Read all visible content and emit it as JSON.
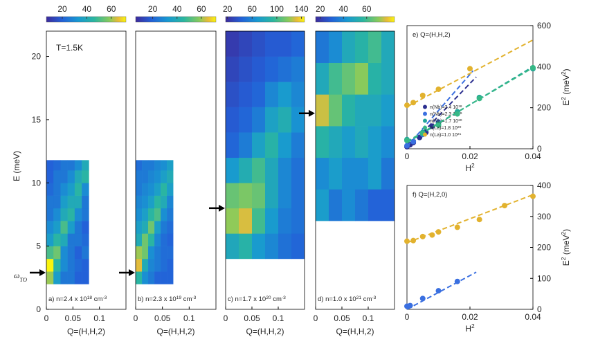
{
  "chart_data": [
    {
      "type": "heatmap",
      "label": [
        "a) n=2.4 x 10",
        "18",
        " cm",
        "-3"
      ],
      "xlabel": "Q=(H,H,2)",
      "ylabel": "E (meV)",
      "annotation": "T=1.5K",
      "arrow_label": [
        "ω",
        "TO"
      ],
      "arrow": 2.9,
      "xlim": [
        0,
        0.15
      ],
      "xticks": [
        0,
        0.05,
        0.1
      ],
      "ylim": [
        0,
        22
      ],
      "yticks": [
        0,
        5,
        10,
        15,
        20
      ],
      "clim": [
        7,
        72
      ],
      "cticks": [
        20,
        40,
        60
      ],
      "x_edges": [
        0,
        0.0133,
        0.0267,
        0.04,
        0.0533,
        0.0667,
        0.08
      ],
      "y_edges": [
        2,
        3,
        4,
        5,
        6,
        7,
        8,
        9,
        10,
        11,
        11.8
      ],
      "values": [
        [
          60,
          35,
          25,
          25,
          20,
          20
        ],
        [
          72,
          45,
          30,
          25,
          22,
          20
        ],
        [
          50,
          55,
          30,
          25,
          20,
          25
        ],
        [
          35,
          45,
          40,
          25,
          25,
          22
        ],
        [
          30,
          35,
          50,
          35,
          25,
          20
        ],
        [
          25,
          30,
          40,
          45,
          30,
          25
        ],
        [
          25,
          25,
          35,
          40,
          40,
          25
        ],
        [
          22,
          25,
          30,
          35,
          45,
          30
        ],
        [
          20,
          25,
          25,
          30,
          40,
          45
        ],
        [
          20,
          22,
          25,
          25,
          30,
          40
        ]
      ]
    },
    {
      "type": "heatmap",
      "label": [
        "b) n=2.3 x 10",
        "19",
        " cm",
        "-3"
      ],
      "xlabel": "Q=(H,H,2)",
      "arrow": 2.9,
      "xlim": [
        0,
        0.15
      ],
      "xticks": [
        0,
        0.05,
        0.1
      ],
      "ylim": [
        0,
        22
      ],
      "clim": [
        6,
        72
      ],
      "cticks": [
        20,
        40,
        60
      ],
      "x_edges": [
        0,
        0.0117,
        0.0233,
        0.035,
        0.0467,
        0.0583,
        0.07
      ],
      "y_edges": [
        2,
        3,
        4,
        5,
        6,
        7,
        8,
        9,
        10,
        11,
        11.8
      ],
      "values": [
        [
          45,
          30,
          25,
          20,
          20,
          20
        ],
        [
          65,
          40,
          28,
          25,
          22,
          20
        ],
        [
          60,
          55,
          30,
          25,
          22,
          22
        ],
        [
          40,
          55,
          45,
          28,
          22,
          20
        ],
        [
          35,
          40,
          55,
          35,
          25,
          22
        ],
        [
          30,
          35,
          45,
          50,
          30,
          25
        ],
        [
          28,
          30,
          35,
          45,
          40,
          28
        ],
        [
          25,
          28,
          30,
          35,
          45,
          35
        ],
        [
          25,
          25,
          28,
          30,
          35,
          40
        ],
        [
          22,
          25,
          25,
          28,
          30,
          35
        ]
      ]
    },
    {
      "type": "heatmap",
      "label": [
        "c) n=1.7 x 10",
        "20",
        " cm",
        "-3"
      ],
      "xlabel": "Q=(H,H,2)",
      "arrow": 8,
      "xlim": [
        0,
        0.15
      ],
      "xticks": [
        0,
        0.05,
        0.1
      ],
      "ylim": [
        0,
        22
      ],
      "clim": [
        17,
        145
      ],
      "cticks": [
        20,
        60,
        100,
        140
      ],
      "x_edges": [
        0,
        0.025,
        0.05,
        0.075,
        0.1,
        0.125,
        0.15
      ],
      "y_edges": [
        4,
        6,
        8,
        10,
        12,
        14,
        16,
        18,
        20,
        22
      ],
      "values": [
        [
          80,
          90,
          70,
          60,
          50,
          45
        ],
        [
          120,
          130,
          100,
          70,
          55,
          50
        ],
        [
          110,
          115,
          110,
          80,
          60,
          50
        ],
        [
          70,
          85,
          100,
          80,
          60,
          50
        ],
        [
          45,
          55,
          75,
          90,
          70,
          55
        ],
        [
          40,
          45,
          55,
          75,
          85,
          65
        ],
        [
          35,
          40,
          45,
          60,
          70,
          60
        ],
        [
          30,
          35,
          40,
          45,
          50,
          55
        ],
        [
          25,
          30,
          35,
          40,
          40,
          45
        ]
      ]
    },
    {
      "type": "heatmap",
      "label": [
        "d) n=1.0 x 10",
        "21",
        " cm",
        "-3"
      ],
      "xlabel": "Q=(H,H,2)",
      "arrow": 15.5,
      "xlim": [
        0,
        0.15
      ],
      "xticks": [
        0,
        0.05,
        0.1
      ],
      "ylim": [
        0,
        22
      ],
      "clim": [
        16,
        84
      ],
      "cticks": [
        20,
        40,
        60
      ],
      "x_edges": [
        0,
        0.025,
        0.05,
        0.075,
        0.1,
        0.125,
        0.15
      ],
      "y_edges": [
        7,
        9.5,
        12,
        14.5,
        17,
        19.5,
        22
      ],
      "values": [
        [
          45,
          35,
          40,
          35,
          30,
          30
        ],
        [
          40,
          45,
          40,
          40,
          45,
          35
        ],
        [
          55,
          50,
          45,
          50,
          45,
          40
        ],
        [
          75,
          65,
          55,
          50,
          50,
          45
        ],
        [
          50,
          60,
          65,
          70,
          55,
          50
        ],
        [
          35,
          40,
          50,
          55,
          60,
          50
        ]
      ]
    },
    {
      "type": "scatter",
      "title": "e)  Q=(H,H,2)",
      "xlabel": [
        "H",
        "2"
      ],
      "ylabel": [
        "E",
        "2",
        " (meV",
        "2",
        ")"
      ],
      "xlim": [
        0,
        0.04
      ],
      "xticks": [
        0,
        0.02,
        0.04
      ],
      "ylim": [
        0,
        600
      ],
      "yticks": [
        0,
        200,
        400,
        600
      ],
      "series": [
        {
          "name": [
            "n(Nb)=2.4 10",
            "18"
          ],
          "color": "#2b2f8f",
          "x": [
            0,
            0.001,
            0.002,
            0.004,
            0.006,
            0.008
          ],
          "values": [
            10,
            20,
            30,
            55,
            80,
            110
          ],
          "fit": {
            "x": [
              0,
              0.022
            ],
            "y": [
              0,
              350
            ]
          }
        },
        {
          "name": [
            "n(Nb)=2.3 10",
            "19"
          ],
          "color": "#3a6fe0",
          "x": [
            0,
            0.002,
            0.005,
            0.01
          ],
          "values": [
            15,
            35,
            70,
            130
          ],
          "fit": {
            "x": [
              0,
              0.021
            ],
            "y": [
              10,
              380
            ]
          }
        },
        {
          "name": [
            "n(Nb)=1.7 10",
            "20"
          ],
          "color": "#22a59b",
          "x": [
            0,
            0.005,
            0.01,
            0.016,
            0.023,
            0.04
          ],
          "values": [
            45,
            80,
            120,
            180,
            250,
            390
          ],
          "fit": {
            "x": [
              0,
              0.04
            ],
            "y": [
              30,
              400
            ]
          }
        },
        {
          "name": [
            "n(La)=1.8 10",
            "20"
          ],
          "color": "#36b886",
          "x": [
            0,
            0.005,
            0.01,
            0.016,
            0.023,
            0.04
          ],
          "values": [
            40,
            75,
            115,
            170,
            245,
            395
          ],
          "fit": {
            "x": [
              0,
              0.04
            ],
            "y": [
              35,
              395
            ]
          }
        },
        {
          "name": [
            "n(La)=1.0 10",
            "21"
          ],
          "color": "#e2b22e",
          "x": [
            0,
            0.002,
            0.005,
            0.01,
            0.02
          ],
          "values": [
            212,
            225,
            260,
            290,
            390
          ],
          "fit": {
            "x": [
              0,
              0.04
            ],
            "y": [
              205,
              530
            ]
          }
        }
      ]
    },
    {
      "type": "scatter",
      "title": "f)  Q=(H,2,0)",
      "xlabel": [
        "H",
        "2"
      ],
      "ylabel": [
        "E",
        "2",
        " (meV",
        "2",
        ")"
      ],
      "xlim": [
        0,
        0.04
      ],
      "xticks": [
        0,
        0.02,
        0.04
      ],
      "ylim": [
        0,
        400
      ],
      "yticks": [
        0,
        100,
        200,
        300,
        400
      ],
      "series": [
        {
          "color": "#e2b22e",
          "x": [
            0,
            0.002,
            0.005,
            0.008,
            0.01,
            0.016,
            0.023,
            0.031,
            0.04
          ],
          "values": [
            220,
            222,
            235,
            240,
            250,
            265,
            290,
            335,
            365
          ],
          "fit": {
            "x": [
              0,
              0.04
            ],
            "y": [
              215,
              370
            ]
          }
        },
        {
          "color": "#3a6fe0",
          "x": [
            0,
            0.001,
            0.005,
            0.01,
            0.016
          ],
          "values": [
            10,
            12,
            35,
            60,
            90
          ],
          "fit": {
            "x": [
              0,
              0.022
            ],
            "y": [
              0,
              120
            ]
          }
        }
      ]
    }
  ]
}
